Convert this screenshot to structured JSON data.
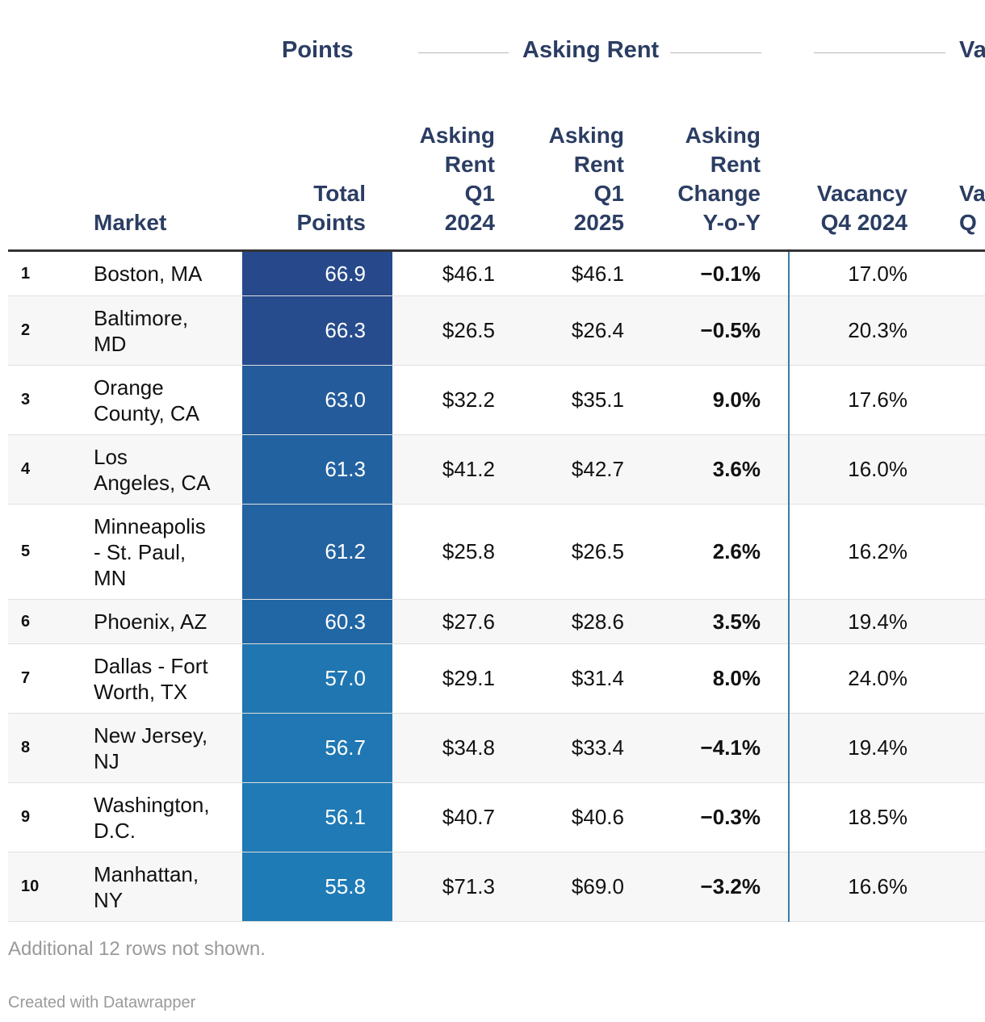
{
  "chart_data": {
    "type": "table",
    "column_groups": [
      {
        "label": "Points"
      },
      {
        "label": "Asking Rent"
      },
      {
        "label": "Va"
      }
    ],
    "columns": [
      {
        "key": "rank",
        "lines": [
          ""
        ]
      },
      {
        "key": "market",
        "lines": [
          "Market"
        ]
      },
      {
        "key": "points",
        "lines": [
          "Total",
          "Points"
        ]
      },
      {
        "key": "rent_q1_2024",
        "lines": [
          "Asking",
          "Rent",
          "Q1",
          "2024"
        ]
      },
      {
        "key": "rent_q1_2025",
        "lines": [
          "Asking",
          "Rent",
          "Q1",
          "2025"
        ]
      },
      {
        "key": "rent_change",
        "lines": [
          "Asking",
          "Rent",
          "Change",
          "Y-o-Y"
        ]
      },
      {
        "key": "vacancy_q4_2024",
        "lines": [
          "Vacancy",
          "Q4 2024"
        ]
      },
      {
        "key": "vacancy_next",
        "lines": [
          "Va",
          "Q"
        ]
      }
    ],
    "rows": [
      {
        "rank": "1",
        "market": [
          "Boston, MA"
        ],
        "points": 66.9,
        "points_label": "66.9",
        "rent_q1_2024": "$46.1",
        "rent_q1_2025": "$46.1",
        "rent_change": "-0.1%",
        "vacancy_q4_2024": "17.0%"
      },
      {
        "rank": "2",
        "market": [
          "Baltimore,",
          "MD"
        ],
        "points": 66.3,
        "points_label": "66.3",
        "rent_q1_2024": "$26.5",
        "rent_q1_2025": "$26.4",
        "rent_change": "-0.5%",
        "vacancy_q4_2024": "20.3%"
      },
      {
        "rank": "3",
        "market": [
          "Orange",
          "County, CA"
        ],
        "points": 63.0,
        "points_label": "63.0",
        "rent_q1_2024": "$32.2",
        "rent_q1_2025": "$35.1",
        "rent_change": "9.0%",
        "vacancy_q4_2024": "17.6%"
      },
      {
        "rank": "4",
        "market": [
          "Los",
          "Angeles, CA"
        ],
        "points": 61.3,
        "points_label": "61.3",
        "rent_q1_2024": "$41.2",
        "rent_q1_2025": "$42.7",
        "rent_change": "3.6%",
        "vacancy_q4_2024": "16.0%"
      },
      {
        "rank": "5",
        "market": [
          "Minneapolis",
          "- St. Paul,",
          "MN"
        ],
        "points": 61.2,
        "points_label": "61.2",
        "rent_q1_2024": "$25.8",
        "rent_q1_2025": "$26.5",
        "rent_change": "2.6%",
        "vacancy_q4_2024": "16.2%"
      },
      {
        "rank": "6",
        "market": [
          "Phoenix, AZ"
        ],
        "points": 60.3,
        "points_label": "60.3",
        "rent_q1_2024": "$27.6",
        "rent_q1_2025": "$28.6",
        "rent_change": "3.5%",
        "vacancy_q4_2024": "19.4%"
      },
      {
        "rank": "7",
        "market": [
          "Dallas - Fort",
          "Worth, TX"
        ],
        "points": 57.0,
        "points_label": "57.0",
        "rent_q1_2024": "$29.1",
        "rent_q1_2025": "$31.4",
        "rent_change": "8.0%",
        "vacancy_q4_2024": "24.0%"
      },
      {
        "rank": "8",
        "market": [
          "New Jersey,",
          "NJ"
        ],
        "points": 56.7,
        "points_label": "56.7",
        "rent_q1_2024": "$34.8",
        "rent_q1_2025": "$33.4",
        "rent_change": "-4.1%",
        "vacancy_q4_2024": "19.4%"
      },
      {
        "rank": "9",
        "market": [
          "Washington,",
          "D.C."
        ],
        "points": 56.1,
        "points_label": "56.1",
        "rent_q1_2024": "$40.7",
        "rent_q1_2025": "$40.6",
        "rent_change": "-0.3%",
        "vacancy_q4_2024": "18.5%"
      },
      {
        "rank": "10",
        "market": [
          "Manhattan,",
          "NY"
        ],
        "points": 55.8,
        "points_label": "55.8",
        "rent_q1_2024": "$71.3",
        "rent_q1_2025": "$69.0",
        "rent_change": "-3.2%",
        "vacancy_q4_2024": "16.6%"
      }
    ],
    "points_color_scale": {
      "low": "#1f7bb6",
      "high": "#27498b"
    }
  },
  "footer": {
    "note": "Additional 12 rows not shown.",
    "credit": "Created with Datawrapper"
  }
}
